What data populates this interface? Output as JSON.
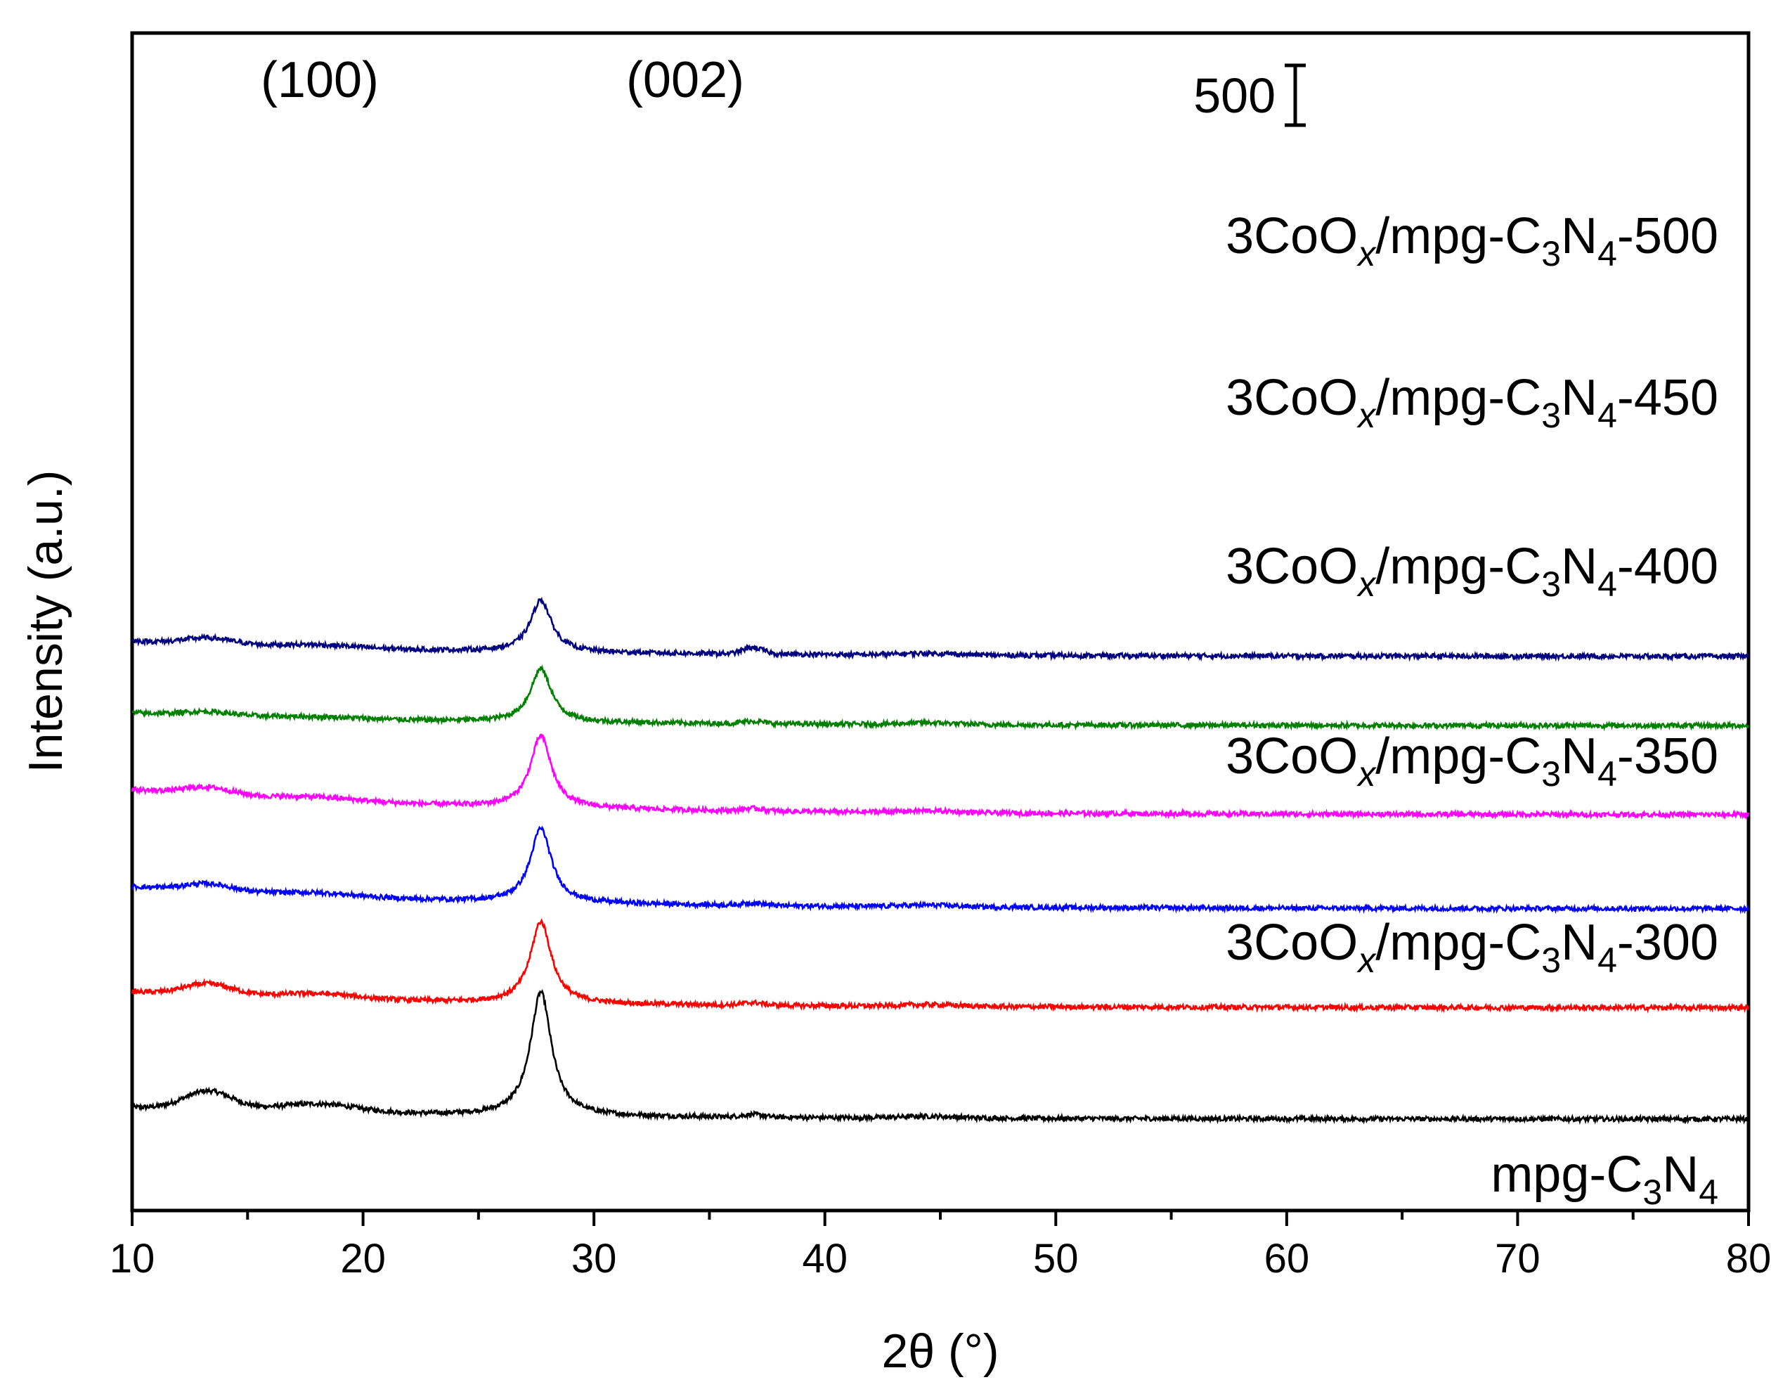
{
  "chart_data": {
    "type": "line",
    "title": "",
    "xlabel": "2θ (°)",
    "ylabel": "Intensity (a.u.)",
    "xlim": [
      10,
      80
    ],
    "xticks": [
      "10",
      "20",
      "30",
      "40",
      "50",
      "60",
      "70",
      "80"
    ],
    "yticks": [],
    "grid": false,
    "peak_labels": [
      {
        "text": "(100)",
        "two_theta": 13.0
      },
      {
        "text": "(002)",
        "two_theta": 27.7
      }
    ],
    "scale_bar": {
      "label": "500",
      "value": 500
    },
    "series": [
      {
        "name": "mpg-C3N4",
        "label": {
          "base": "mpg-C",
          "sub1": "3",
          "mid": "N",
          "sub2": "4",
          "italic": "",
          "tail": ""
        },
        "color": "#000000",
        "offset": 0,
        "peak_height": 1000,
        "peak_pos": 27.7,
        "base_start": 95,
        "base_end": 0,
        "hump": 150
      },
      {
        "name": "3CoOx/mpg-C3N4-300",
        "label": {
          "base": "3CoO",
          "italic": "x",
          "mid": "/mpg-C",
          "sub1": "3",
          "mid2": "N",
          "sub2": "4",
          "tail": "-300"
        },
        "color": "#ff0000",
        "offset": 900,
        "peak_height": 660,
        "peak_pos": 27.7,
        "base_start": 130,
        "base_end": 0,
        "hump": 90
      },
      {
        "name": "3CoOx/mpg-C3N4-350",
        "label": {
          "base": "3CoO",
          "italic": "x",
          "mid": "/mpg-C",
          "sub1": "3",
          "mid2": "N",
          "sub2": "4",
          "tail": "-350"
        },
        "color": "#0000ff",
        "offset": 1700,
        "peak_height": 600,
        "peak_pos": 27.7,
        "base_start": 180,
        "base_end": 0,
        "hump": 60
      },
      {
        "name": "3CoOx/mpg-C3N4-400",
        "label": {
          "base": "3CoO",
          "italic": "x",
          "mid": "/mpg-C",
          "sub1": "3",
          "mid2": "N",
          "sub2": "4",
          "tail": "-400"
        },
        "color": "#ff00ff",
        "offset": 2460,
        "peak_height": 580,
        "peak_pos": 27.7,
        "base_start": 205,
        "base_end": 0,
        "hump": 60
      },
      {
        "name": "3CoOx/mpg-C3N4-450",
        "label": {
          "base": "3CoO",
          "italic": "x",
          "mid": "/mpg-C",
          "sub1": "3",
          "mid2": "N",
          "sub2": "4",
          "tail": "-450"
        },
        "color": "#008000",
        "offset": 3180,
        "peak_height": 430,
        "peak_pos": 27.7,
        "base_start": 105,
        "base_end": 0,
        "hump": 30
      },
      {
        "name": "3CoOx/mpg-C3N4-500",
        "label": {
          "base": "3CoO",
          "italic": "x",
          "mid": "/mpg-C",
          "sub1": "3",
          "mid2": "N",
          "sub2": "4",
          "tail": "-500"
        },
        "color": "#000080",
        "offset": 3740,
        "peak_height": 420,
        "peak_pos": 27.7,
        "base_start": 125,
        "base_end": 0,
        "hump": 50
      }
    ]
  }
}
